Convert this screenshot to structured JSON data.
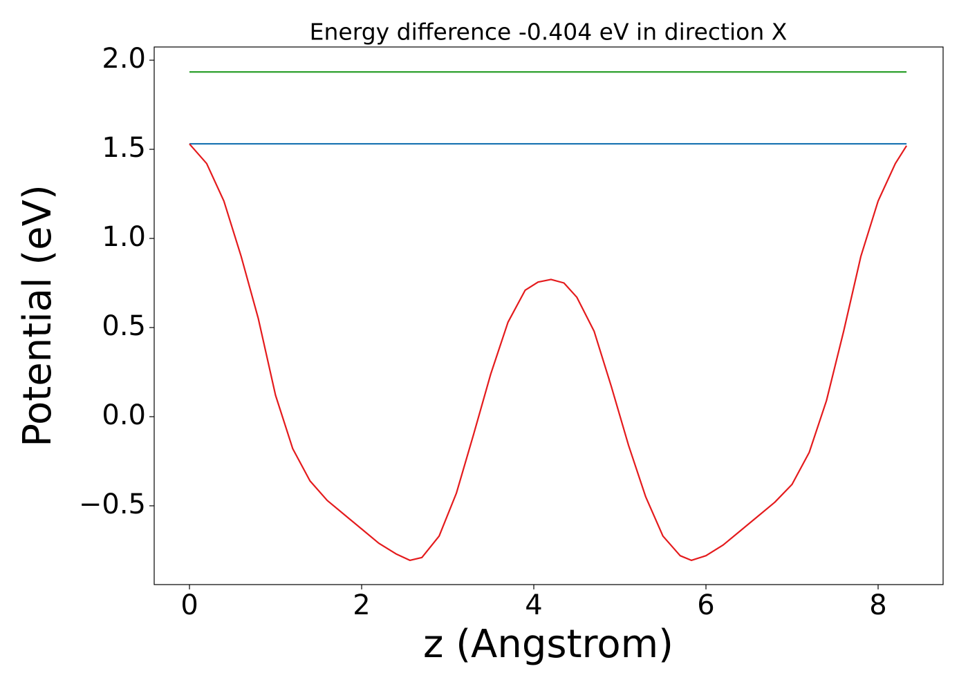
{
  "chart_data": {
    "type": "line",
    "title": "Energy difference -0.404 eV in direction X",
    "xlabel": "z (Angstrom)",
    "ylabel": "Potential (eV)",
    "xlim": [
      -0.41,
      8.755
    ],
    "ylim": [
      -0.942,
      2.074
    ],
    "xticks": [
      0,
      2,
      4,
      6,
      8
    ],
    "yticks": [
      {
        "value": -0.5,
        "label": "−0.5"
      },
      {
        "value": 0,
        "label": "0.0"
      },
      0.5,
      {
        "value": 1,
        "label": "1.0"
      },
      1.5,
      {
        "value": 2,
        "label": "2.0"
      }
    ],
    "series": [
      {
        "color": "#2ca02c",
        "x": [
          0,
          8.33
        ],
        "values": [
          1.934,
          1.934
        ]
      },
      {
        "color": "#1f77b4",
        "x": [
          0,
          8.33
        ],
        "values": [
          1.531,
          1.531
        ]
      },
      {
        "color": "#e41a1c",
        "x": [
          0,
          0.2,
          0.4,
          0.6,
          0.8,
          1.0,
          1.2,
          1.4,
          1.6,
          1.8,
          2.0,
          2.2,
          2.4,
          2.56,
          2.7,
          2.9,
          3.1,
          3.3,
          3.5,
          3.7,
          3.9,
          4.05,
          4.2,
          4.35,
          4.5,
          4.7,
          4.9,
          5.1,
          5.3,
          5.5,
          5.7,
          5.83,
          6.0,
          6.2,
          6.4,
          6.6,
          6.8,
          7.0,
          7.2,
          7.4,
          7.6,
          7.8,
          8.0,
          8.2,
          8.33
        ],
        "values": [
          1.53,
          1.42,
          1.21,
          0.9,
          0.55,
          0.12,
          -0.18,
          -0.36,
          -0.47,
          -0.55,
          -0.63,
          -0.71,
          -0.77,
          -0.806,
          -0.79,
          -0.67,
          -0.43,
          -0.1,
          0.24,
          0.53,
          0.71,
          0.755,
          0.77,
          0.75,
          0.67,
          0.48,
          0.17,
          -0.16,
          -0.45,
          -0.67,
          -0.78,
          -0.806,
          -0.78,
          -0.72,
          -0.64,
          -0.56,
          -0.48,
          -0.38,
          -0.2,
          0.09,
          0.48,
          0.9,
          1.21,
          1.42,
          1.52
        ]
      }
    ]
  }
}
